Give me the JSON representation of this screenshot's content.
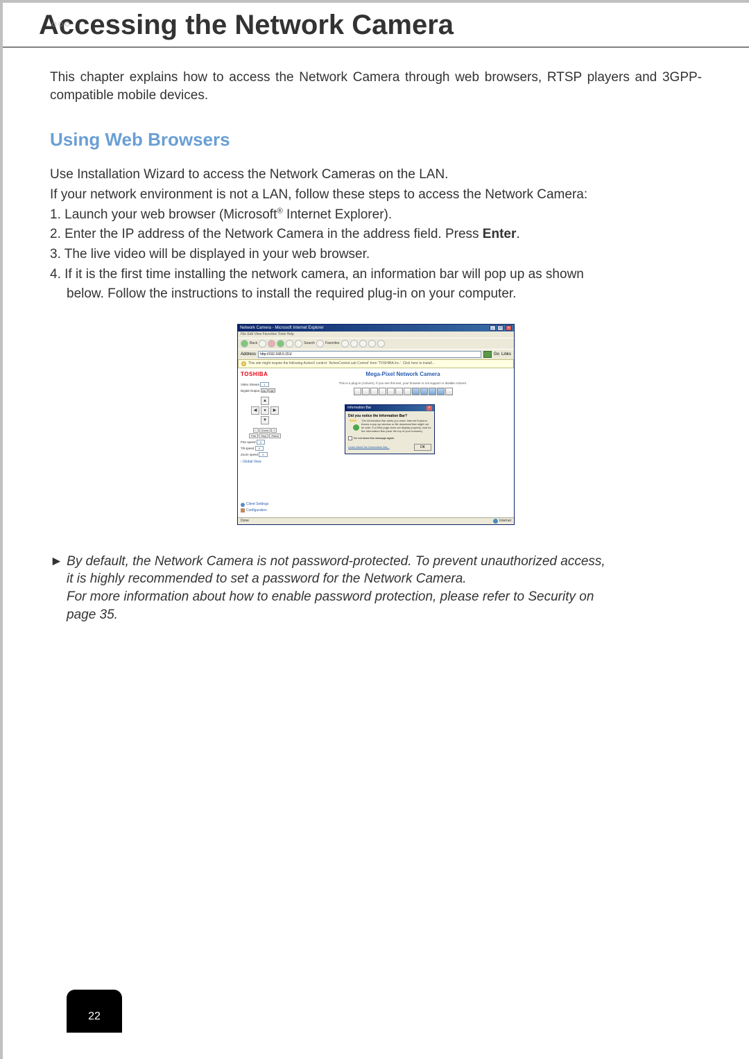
{
  "page": {
    "decorativeBubbles": "○○○",
    "mainTitle": "Accessing the Network Camera",
    "intro": "This chapter explains how to access the Network Camera through web browsers, RTSP players and 3GPP-compatible mobile devices.",
    "subHeading": "Using Web Browsers",
    "body": {
      "line1": "Use Installation Wizard to access the Network Cameras on the LAN.",
      "line2": "If your network environment is not a LAN, follow these steps to access the Network Camera:",
      "step1_pre": "1. Launch your web browser (Microsoft",
      "step1_sup": "®",
      "step1_post": " Internet Explorer).",
      "step2_pre": "2. Enter the IP address of the Network Camera in the address field. Press ",
      "step2_bold": "Enter",
      "step2_post": ".",
      "step3": "3. The live video will be displayed in your web browser.",
      "step4a": "4. If it is the first time installing the network camera, an information bar will pop up as shown",
      "step4b": "below. Follow the instructions to install the required plug-in on your computer."
    },
    "note": {
      "arrow": "►",
      "line1": " By default, the Network Camera is not password-protected. To prevent unauthorized access,",
      "line2": "it is highly recommended to set a password for the Network Camera.",
      "line3": "For more information about how to enable password protection, please refer to Security on",
      "line4": "page 35."
    },
    "pageNumber": "22"
  },
  "screenshot": {
    "windowTitle": "Network Camera - Microsoft Internet Explorer",
    "menubar": "File   Edit   View   Favorites   Tools   Help",
    "toolbar": {
      "back": "Back",
      "search": "Search",
      "favorites": "Favorites"
    },
    "addressLabel": "Address",
    "addressValue": "http://192.168.5.151/",
    "goLabel": "Go",
    "linksLabel": "Links",
    "infobarText": "This site might require the following ActiveX control: 'ActiveControl.cab Control' from 'TOSHIBA Inc.'. Click here to install...",
    "sidebar": {
      "logo": "TOSHIBA",
      "videoStreamLabel": "Video Stream",
      "videoStreamValue": "1",
      "digitalOutputLabel": "Digital Output",
      "doOn": "On",
      "doOff": "Off",
      "ptz": {
        "up": "▲",
        "down": "▼",
        "left": "◀",
        "right": "▶",
        "home": "●"
      },
      "zoomBtns": {
        "minus": "−",
        "label": "Zoom",
        "plus": "+"
      },
      "panBtns": {
        "pan": "Pan",
        "stop": "Stop",
        "patrol": "Patrol"
      },
      "panSpeedLabel": "Pan speed",
      "panSpeedValue": "0",
      "tiltSpeedLabel": "Tilt speed",
      "tiltSpeedValue": "0",
      "zoomSpeedLabel": "Zoom speed",
      "zoomSpeedValue": "0",
      "globalView": "› Global View",
      "clientSettings": "Client Settings",
      "configuration": "Configuration"
    },
    "main": {
      "title": "Mega-Pixel Network Camera",
      "pluginMsg": "This is a plug-in (ActiveX). If you see this text, your browser is not support or disable ActiveX."
    },
    "dialog": {
      "title": "Information Bar",
      "heading": "Did you notice the Information Bar?",
      "body": "The Information Bar alerts you when Internet Explorer blocks a pop-up window or file download that might not be safe. If a Web page does not display properly, look for the Information Bar (near the top of your browser).",
      "checkbox": "Do not show this message again.",
      "link": "Learn about the Information Bar...",
      "ok": "OK"
    },
    "statusbar": {
      "left": "Done",
      "right": "Internet"
    },
    "colors": {
      "titlebarGradientStart": "#0a246a",
      "titlebarGradientEnd": "#3b6ea5",
      "windowBg": "#ece9d8",
      "infobarBg": "#ffffe1",
      "logoColor": "#e60012",
      "linkColor": "#2a5db0"
    }
  }
}
